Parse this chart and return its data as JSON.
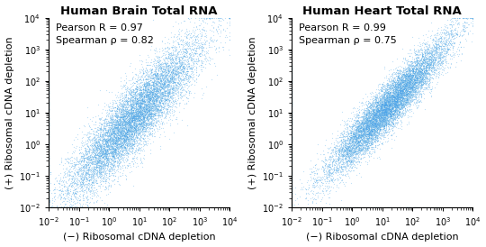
{
  "panel1_title": "Human Brain Total RNA",
  "panel2_title": "Human Heart Total RNA",
  "xlabel": "(−) Ribosomal cDNA depletion",
  "ylabel": "(+) Ribosomal cDNA depletion",
  "panel1_pearson": "Pearson R = 0.97",
  "panel1_spearman": "Spearman ρ = 0.82",
  "panel2_pearson": "Pearson R = 0.99",
  "panel2_spearman": "Spearman ρ = 0.75",
  "dot_color": "#4da6e8",
  "dot_size": 0.8,
  "dot_alpha": 0.35,
  "xlim_log": [
    -2,
    4
  ],
  "ylim_log": [
    -2,
    4
  ],
  "n_points": 12000,
  "title_fontsize": 9.5,
  "label_fontsize": 8,
  "annot_fontsize": 8,
  "tick_fontsize": 7
}
